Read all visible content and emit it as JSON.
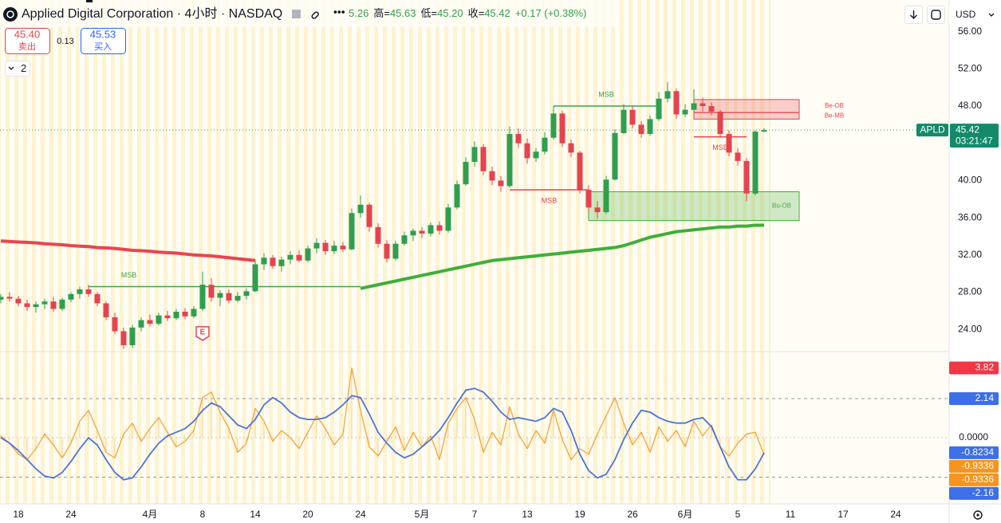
{
  "header": {
    "title": "Applied Digital Corporation · 4小时 · NASDAQ",
    "open_tail": "5.26",
    "ohlc": [
      {
        "label": "高=",
        "value": "45.63"
      },
      {
        "label": "低=",
        "value": "45.20"
      },
      {
        "label": "收=",
        "value": "45.42"
      }
    ],
    "change": "+0.17 (+0.38%)",
    "currency": "USD"
  },
  "trade": {
    "sell": {
      "price": "45.40",
      "label": "卖出"
    },
    "spread": "0.13",
    "buy": {
      "price": "45.53",
      "label": "买入"
    }
  },
  "layers": "2",
  "chart_data": [
    {
      "type": "candlestick",
      "categories": [
        null,
        null,
        "18",
        null,
        null,
        null,
        null,
        null,
        "24",
        null,
        null,
        null,
        null,
        null,
        null,
        null,
        null,
        "4月",
        null,
        null,
        null,
        null,
        null,
        "8",
        null,
        null,
        null,
        null,
        null,
        "14",
        null,
        null,
        null,
        null,
        null,
        "20",
        null,
        null,
        null,
        null,
        null,
        "24",
        null,
        null,
        null,
        null,
        null,
        null,
        "5月",
        null,
        null,
        null,
        null,
        null,
        "7",
        null,
        null,
        null,
        null,
        null,
        "13",
        null,
        null,
        null,
        null,
        null,
        "19",
        null,
        null,
        null,
        null,
        null,
        "26",
        null,
        null,
        null,
        null,
        null,
        "6月",
        null,
        null,
        null,
        null,
        null,
        "5",
        null,
        null,
        null,
        null,
        null,
        "11",
        null,
        null,
        null,
        null,
        null,
        "17",
        null,
        null,
        null,
        null,
        null,
        "24",
        null,
        null,
        null,
        null,
        null
      ],
      "open": [
        27.2,
        27.5,
        27.3,
        26.8,
        26.4,
        26.7,
        27.0,
        26.2,
        27.2,
        27.8,
        28.3,
        27.8,
        26.8,
        25.3,
        23.8,
        22.3,
        24.2,
        25.0,
        24.6,
        25.5,
        25.2,
        25.9,
        25.4,
        26.2,
        28.8,
        27.4,
        27.9,
        27.1,
        27.6,
        28.1,
        31.0,
        31.7,
        30.8,
        31.5,
        32.0,
        31.4,
        32.7,
        33.3,
        32.4,
        33.0,
        32.6,
        36.5,
        37.4,
        35.0,
        33.2,
        31.6,
        33.2,
        34.1,
        34.6,
        34.3,
        35.2,
        34.6,
        37.1,
        39.6,
        42.0,
        43.6,
        41.0,
        40.0,
        39.4,
        45.0,
        44.0,
        42.4,
        43.1,
        44.6,
        47.2,
        44.0,
        43.0,
        39.0,
        37.1,
        36.6,
        40.1,
        45.1,
        47.6,
        46.0,
        45.0,
        46.6,
        48.8,
        49.6,
        47.1,
        47.6,
        48.3,
        48.0,
        47.4,
        45.0,
        43.0,
        42.1,
        38.6,
        45.26,
        null,
        null,
        null,
        null,
        null,
        null,
        null,
        null,
        null,
        null,
        null,
        null,
        null,
        null,
        null,
        null,
        null,
        null,
        null,
        null
      ],
      "high": [
        27.8,
        28.0,
        27.6,
        27.2,
        27.0,
        27.3,
        27.5,
        27.4,
        28.0,
        28.6,
        28.8,
        28.0,
        27.0,
        25.8,
        24.2,
        24.5,
        25.3,
        25.6,
        25.8,
        26.0,
        26.2,
        26.3,
        26.5,
        30.2,
        29.5,
        28.2,
        28.3,
        28.0,
        28.4,
        31.5,
        32.2,
        32.0,
        31.8,
        32.4,
        32.5,
        33.0,
        33.8,
        33.6,
        33.5,
        33.4,
        37.0,
        38.4,
        37.6,
        35.4,
        33.6,
        33.5,
        34.5,
        34.8,
        35.0,
        35.5,
        35.6,
        37.5,
        40.0,
        42.5,
        44.2,
        43.9,
        41.5,
        40.5,
        45.8,
        45.6,
        44.5,
        43.5,
        45.2,
        48.0,
        47.5,
        44.4,
        43.2,
        39.5,
        37.8,
        40.5,
        45.5,
        48.2,
        48.0,
        46.4,
        47.0,
        49.5,
        50.6,
        49.9,
        48.2,
        49.8,
        48.9,
        48.4,
        47.6,
        45.4,
        43.5,
        42.4,
        45.4,
        45.63,
        null,
        null,
        null,
        null,
        null,
        null,
        null,
        null,
        null,
        null,
        null,
        null,
        null,
        null,
        null,
        null,
        null,
        null,
        null,
        null
      ],
      "low": [
        26.8,
        27.0,
        26.5,
        26.0,
        25.8,
        26.2,
        25.9,
        26.0,
        26.9,
        27.3,
        27.5,
        26.5,
        25.0,
        23.5,
        21.9,
        22.0,
        23.8,
        24.3,
        24.4,
        24.9,
        25.0,
        25.1,
        25.2,
        26.0,
        27.0,
        26.5,
        26.8,
        26.9,
        27.2,
        28.0,
        30.4,
        30.5,
        30.2,
        31.0,
        31.2,
        31.2,
        32.2,
        32.0,
        32.1,
        32.3,
        32.5,
        36.0,
        34.5,
        32.8,
        31.2,
        31.4,
        33.0,
        33.5,
        33.8,
        34.0,
        34.2,
        34.4,
        36.9,
        39.4,
        41.5,
        40.6,
        39.5,
        38.8,
        39.2,
        43.5,
        41.8,
        42.0,
        42.8,
        44.4,
        43.6,
        42.5,
        38.6,
        36.6,
        35.9,
        36.4,
        40.0,
        45.0,
        45.6,
        44.6,
        44.8,
        46.4,
        48.4,
        46.6,
        46.8,
        47.3,
        47.4,
        47.0,
        44.6,
        42.6,
        41.6,
        37.8,
        38.4,
        45.2,
        null,
        null,
        null,
        null,
        null,
        null,
        null,
        null,
        null,
        null,
        null,
        null,
        null,
        null,
        null,
        null,
        null,
        null,
        null,
        null
      ],
      "close": [
        27.5,
        27.3,
        26.8,
        26.4,
        26.7,
        27.0,
        26.2,
        27.2,
        27.8,
        28.3,
        27.8,
        26.8,
        25.3,
        23.8,
        22.3,
        24.2,
        25.0,
        24.6,
        25.5,
        25.2,
        25.9,
        25.4,
        26.2,
        28.8,
        27.4,
        27.9,
        27.1,
        27.6,
        28.1,
        31.0,
        31.7,
        30.8,
        31.5,
        32.0,
        31.4,
        32.7,
        33.3,
        32.4,
        33.0,
        32.6,
        36.5,
        37.4,
        35.0,
        33.2,
        31.6,
        33.2,
        34.1,
        34.6,
        34.3,
        35.2,
        34.6,
        37.1,
        39.6,
        42.0,
        43.6,
        41.0,
        40.0,
        39.4,
        45.0,
        44.0,
        42.4,
        43.1,
        44.6,
        47.2,
        44.0,
        43.0,
        39.0,
        37.1,
        36.6,
        40.1,
        45.1,
        47.6,
        46.0,
        45.0,
        46.6,
        48.8,
        49.6,
        47.1,
        47.6,
        48.3,
        48.0,
        47.4,
        45.0,
        43.0,
        42.1,
        38.6,
        45.26,
        45.42,
        null,
        null,
        null,
        null,
        null,
        null,
        null,
        null,
        null,
        null,
        null,
        null,
        null,
        null,
        null,
        null,
        null,
        null,
        null,
        null
      ],
      "up_color": "#2f9e4f",
      "down_color": "#e5434f",
      "series": [
        {
          "color": "#e8454f",
          "width": 4,
          "values": [
            33.5,
            33.45,
            33.4,
            33.35,
            33.3,
            33.2,
            33.15,
            33.1,
            33.0,
            32.95,
            32.9,
            32.8,
            32.75,
            32.7,
            32.6,
            32.5,
            32.45,
            32.4,
            32.3,
            32.25,
            32.2,
            32.1,
            32.0,
            31.95,
            31.9,
            31.8,
            31.7,
            31.6,
            31.5,
            31.4,
            null,
            null,
            null,
            null,
            null,
            null,
            null,
            null,
            null,
            null,
            null,
            null,
            null,
            null,
            null,
            null,
            null,
            null,
            null,
            null,
            null,
            null,
            null,
            null,
            null,
            null,
            null,
            null,
            null,
            null,
            null,
            null,
            null,
            null,
            null,
            null,
            null,
            null,
            null,
            null,
            null,
            null,
            null,
            null,
            null,
            null,
            null,
            null,
            null,
            null,
            null,
            null,
            null,
            null,
            null,
            null,
            null,
            null,
            null,
            null,
            null,
            null,
            null,
            null,
            null,
            null,
            null,
            null,
            null,
            null,
            null,
            null,
            null,
            null,
            null,
            null,
            null,
            null
          ]
        },
        {
          "color": "#3fae3a",
          "width": 4,
          "values": [
            null,
            null,
            null,
            null,
            null,
            null,
            null,
            null,
            null,
            null,
            null,
            null,
            null,
            null,
            null,
            null,
            null,
            null,
            null,
            null,
            null,
            null,
            null,
            null,
            null,
            null,
            null,
            null,
            null,
            null,
            null,
            null,
            null,
            null,
            null,
            null,
            null,
            null,
            null,
            null,
            null,
            28.4,
            28.6,
            28.8,
            29.0,
            29.2,
            29.4,
            29.6,
            29.8,
            30.0,
            30.2,
            30.4,
            30.6,
            30.8,
            31.0,
            31.2,
            31.4,
            31.5,
            31.6,
            31.7,
            31.8,
            31.9,
            32.0,
            32.1,
            32.2,
            32.3,
            32.4,
            32.5,
            32.6,
            32.7,
            32.8,
            33.0,
            33.3,
            33.6,
            33.9,
            34.1,
            34.3,
            34.5,
            34.6,
            34.7,
            34.8,
            34.9,
            35.0,
            35.0,
            35.1,
            35.1,
            35.2,
            35.2,
            null,
            null,
            null,
            null,
            null,
            null,
            null,
            null,
            null,
            null,
            null,
            null,
            null,
            null,
            null,
            null,
            null,
            null,
            null,
            null
          ]
        }
      ],
      "structure": [
        {
          "label": "MSB",
          "price": 28.6,
          "from": 10,
          "to": 41,
          "color": "#3fa24a",
          "side": "above"
        },
        {
          "label": "MSB",
          "price": 39,
          "from": 58,
          "to": 67,
          "color": "#e5434f",
          "side": "below"
        },
        {
          "label": "MSB",
          "price": 48,
          "from": 63,
          "to": 75,
          "color": "#3fa24a",
          "side": "above"
        },
        {
          "label": "MSB",
          "price": 44.7,
          "from": 79,
          "to": 85,
          "color": "#e5434f",
          "side": "below"
        }
      ],
      "zones": [
        {
          "label": "Bu-OB",
          "low": 35.7,
          "high": 38.8,
          "from": 67,
          "to": 91,
          "color": "#3fae3a"
        },
        {
          "label": "Be-OB",
          "low": 47.3,
          "high": 48.7,
          "from": 79,
          "to": 91,
          "color": "#e5434f"
        },
        {
          "label": "Be-MB",
          "low": 46.6,
          "high": 47.3,
          "from": 79,
          "to": 91,
          "color": "#e5434f"
        }
      ],
      "events": [
        {
          "label": "E",
          "index": 23,
          "price": 24.8
        }
      ],
      "price_tag": {
        "symbol": "APLD",
        "price": 45.42,
        "countdown": "03:21:47"
      },
      "ylim": [
        21.7,
        59.4
      ],
      "yticks": [
        {
          "value": 24,
          "label": "24.00"
        },
        {
          "value": 28,
          "label": "28.00"
        },
        {
          "value": 32,
          "label": "32.00"
        },
        {
          "value": 36,
          "label": "36.00"
        },
        {
          "value": 40,
          "label": "40.00"
        },
        {
          "value": 44,
          "label": "44.00"
        },
        {
          "value": 48,
          "label": "48.00"
        },
        {
          "value": 52,
          "label": "52.00"
        },
        {
          "value": 56,
          "label": "56.00"
        }
      ],
      "grid": false
    },
    {
      "type": "line",
      "ylim": [
        -3.62,
        4.67
      ],
      "yticks": [
        {
          "value": 0,
          "label": "0.0000"
        }
      ],
      "hlines": [
        2.14,
        -2.16
      ],
      "series": [
        {
          "color": "#4a74e0",
          "values": [
            0.0,
            -0.3,
            -0.7,
            -1.2,
            -1.7,
            -2.1,
            -2.2,
            -1.9,
            -1.3,
            -0.6,
            0.0,
            -0.4,
            -1.2,
            -1.9,
            -2.3,
            -2.2,
            -1.6,
            -0.9,
            -0.3,
            0.1,
            0.3,
            0.5,
            0.9,
            1.5,
            1.9,
            1.7,
            1.2,
            0.7,
            0.5,
            1.0,
            1.8,
            2.2,
            1.9,
            1.4,
            1.1,
            1.0,
            1.0,
            1.1,
            1.4,
            1.8,
            2.3,
            2.2,
            1.3,
            0.3,
            -0.3,
            -0.8,
            -1.1,
            -0.9,
            -0.5,
            -0.1,
            0.4,
            1.1,
            1.9,
            2.6,
            2.7,
            2.5,
            2.0,
            1.4,
            1.0,
            1.1,
            1.0,
            0.9,
            1.1,
            1.6,
            1.4,
            0.4,
            -0.9,
            -1.8,
            -2.2,
            -2.0,
            -1.2,
            -0.1,
            0.8,
            1.5,
            1.4,
            1.1,
            0.9,
            0.8,
            0.8,
            1.0,
            1.1,
            0.6,
            -0.5,
            -1.6,
            -2.3,
            -2.3,
            -1.7,
            -0.8234,
            null,
            null,
            null,
            null,
            null,
            null,
            null,
            null,
            null,
            null,
            null,
            null,
            null,
            null,
            null,
            null,
            null,
            null,
            null,
            null
          ]
        },
        {
          "color": "#f5a43a",
          "histogram": true,
          "values": [
            0.1,
            -0.3,
            -0.9,
            -1.2,
            -0.6,
            0.2,
            -0.4,
            -1.1,
            -0.3,
            0.9,
            1.5,
            0.4,
            -0.8,
            -1.1,
            0.2,
            0.8,
            -0.2,
            0.5,
            1.1,
            0.3,
            -0.5,
            -0.2,
            0.4,
            2.2,
            2.5,
            1.4,
            0.5,
            -0.8,
            -0.3,
            1.6,
            0.9,
            -0.2,
            0.4,
            0.0,
            -0.6,
            0.3,
            1.2,
            0.5,
            -0.4,
            0.2,
            3.82,
            1.5,
            -0.5,
            -1.0,
            -0.2,
            0.6,
            -0.7,
            0.3,
            -0.5,
            0.1,
            -1.2,
            0.8,
            1.6,
            2.2,
            1.0,
            -0.8,
            0.3,
            -0.4,
            1.7,
            0.2,
            -0.6,
            0.4,
            -0.3,
            1.5,
            -0.1,
            -1.2,
            -0.6,
            -0.9,
            0.2,
            1.2,
            2.2,
            0.8,
            -0.4,
            0.3,
            -0.8,
            0.6,
            -0.2,
            0.4,
            -0.5,
            0.9,
            0.1,
            0.7,
            -0.5,
            -1.0,
            -0.3,
            0.2,
            0.3,
            -0.9336,
            null,
            null,
            null,
            null,
            null,
            null,
            null,
            null,
            null,
            null,
            null,
            null,
            null,
            null,
            null,
            null,
            null,
            null,
            null,
            null
          ]
        }
      ],
      "markers": [
        {
          "value": 3.82,
          "color": "#f23645"
        },
        {
          "value": 2.14,
          "color": "#3d6fe6"
        },
        {
          "value": -0.8234,
          "color": "#3d6fe6"
        },
        {
          "value": -0.9336,
          "color": "#f7941d"
        },
        {
          "value": -0.9336,
          "color": "#f7941d"
        },
        {
          "value": -2.16,
          "color": "#3d6fe6"
        }
      ]
    }
  ]
}
